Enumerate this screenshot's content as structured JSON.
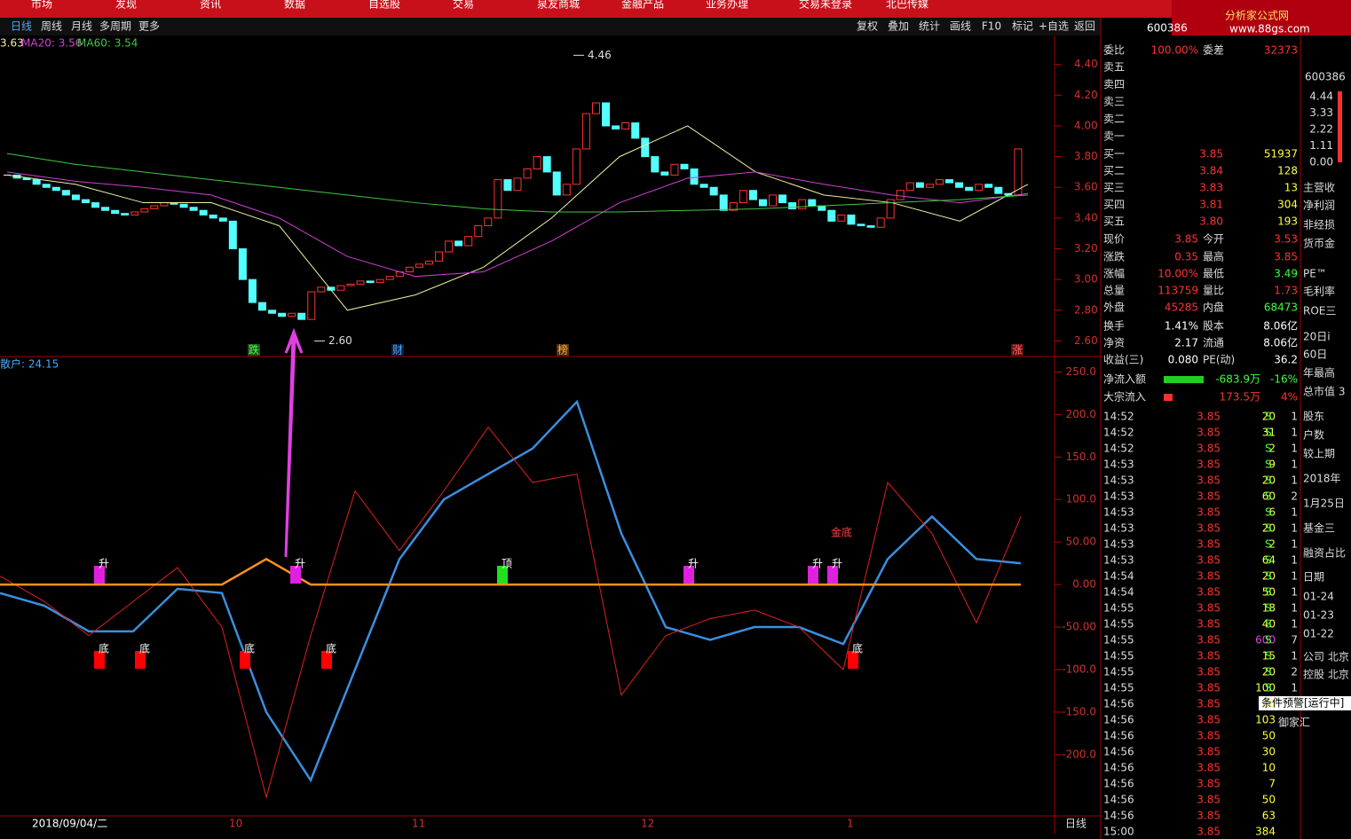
{
  "menu": [
    "市场",
    "发现",
    "资讯",
    "数据",
    "自选股",
    "交易",
    "泉友商城",
    "金融产品",
    "业务办理"
  ],
  "status": "交易未登录",
  "stock_name": "北巴传媒",
  "stock_code": "600386",
  "periods": [
    "日线",
    "周线",
    "月线",
    "多周期",
    "更多"
  ],
  "tools": [
    "复权",
    "叠加",
    "统计",
    "画线",
    "F10",
    "标记",
    "+自选",
    "返回"
  ],
  "ma_legend": [
    "3.63",
    "MA20: 3.56",
    "MA60: 3.54"
  ],
  "logo": {
    "title": "分析家公式网",
    "url": "www.88gs.com"
  },
  "chart_data": [
    {
      "type": "candlestick",
      "ylim": [
        2.51,
        4.56
      ],
      "yticks": [
        {
          "value": 2.6,
          "label": "2.60"
        },
        {
          "value": 2.8,
          "label": "2.80"
        },
        {
          "value": 3,
          "label": "3.00"
        },
        {
          "value": 3.2,
          "label": "3.20"
        },
        {
          "value": 3.4,
          "label": "3.40"
        },
        {
          "value": 3.6,
          "label": "3.60"
        },
        {
          "value": 3.8,
          "label": "3.80"
        },
        {
          "value": 4,
          "label": "4.00"
        },
        {
          "value": 4.2,
          "label": "4.20"
        },
        {
          "value": 4.4,
          "label": "4.40"
        }
      ],
      "closes": [
        3.68,
        3.66,
        3.65,
        3.62,
        3.6,
        3.58,
        3.55,
        3.52,
        3.5,
        3.47,
        3.45,
        3.43,
        3.42,
        3.44,
        3.46,
        3.48,
        3.5,
        3.49,
        3.47,
        3.45,
        3.42,
        3.4,
        3.38,
        3.2,
        3.0,
        2.85,
        2.8,
        2.78,
        2.76,
        2.78,
        2.74,
        2.92,
        2.95,
        2.93,
        2.96,
        2.97,
        2.99,
        2.98,
        3.0,
        3.02,
        3.05,
        3.08,
        3.1,
        3.12,
        3.18,
        3.25,
        3.22,
        3.28,
        3.35,
        3.4,
        3.65,
        3.58,
        3.66,
        3.72,
        3.8,
        3.7,
        3.55,
        3.62,
        3.85,
        4.08,
        4.15,
        4.0,
        3.98,
        4.02,
        3.92,
        3.8,
        3.7,
        3.68,
        3.75,
        3.72,
        3.62,
        3.6,
        3.55,
        3.45,
        3.5,
        3.58,
        3.52,
        3.48,
        3.55,
        3.5,
        3.46,
        3.52,
        3.48,
        3.45,
        3.38,
        3.42,
        3.36,
        3.35,
        3.34,
        3.4,
        3.52,
        3.58,
        3.63,
        3.6,
        3.62,
        3.65,
        3.63,
        3.6,
        3.58,
        3.62,
        3.6,
        3.56,
        3.55,
        3.85
      ],
      "series": [
        {
          "name": "MA5",
          "color": "#f0f0a0",
          "values": [
            3.68,
            3.62,
            3.5,
            3.5,
            3.35,
            2.8,
            2.9,
            3.08,
            3.4,
            3.8,
            4.0,
            3.7,
            3.55,
            3.5,
            3.38,
            3.62
          ]
        },
        {
          "name": "MA20",
          "color": "#d040d0",
          "values": [
            3.7,
            3.64,
            3.6,
            3.55,
            3.4,
            3.15,
            3.02,
            3.05,
            3.25,
            3.5,
            3.66,
            3.7,
            3.62,
            3.55,
            3.5,
            3.56
          ]
        },
        {
          "name": "MA60",
          "color": "#40c840",
          "values": [
            3.82,
            3.75,
            3.7,
            3.65,
            3.6,
            3.55,
            3.5,
            3.46,
            3.44,
            3.44,
            3.45,
            3.46,
            3.48,
            3.5,
            3.52,
            3.55
          ]
        }
      ],
      "annotations": [
        {
          "value": 4.46,
          "label": "4.46"
        },
        {
          "value": 2.6,
          "label": "2.60"
        }
      ],
      "events": [
        "跌",
        "财",
        "榜",
        "涨"
      ]
    },
    {
      "type": "line",
      "title": "散户: 24.15",
      "ylim": [
        -270,
        265
      ],
      "yticks": [
        {
          "value": -200,
          "label": "-200.0"
        },
        {
          "value": -150,
          "label": "-150.0"
        },
        {
          "value": -100,
          "label": "-100.0"
        },
        {
          "value": -50,
          "label": "-50.00"
        },
        {
          "value": 0,
          "label": "0.00"
        },
        {
          "value": 50,
          "label": "50.00"
        },
        {
          "value": 100,
          "label": "100.0"
        },
        {
          "value": 150,
          "label": "150.0"
        },
        {
          "value": 200,
          "label": "200.0"
        },
        {
          "value": 250,
          "label": "250.0"
        }
      ],
      "series": [
        {
          "color": "#3a8fe0",
          "values": [
            -10,
            -25,
            -55,
            -55,
            -5,
            -10,
            -150,
            -230,
            -100,
            30,
            100,
            130,
            160,
            215,
            60,
            -50,
            -65,
            -50,
            -50,
            -70,
            30,
            80,
            30,
            25
          ]
        },
        {
          "color": "#e02020",
          "values": [
            10,
            -20,
            -60,
            -20,
            20,
            -50,
            -250,
            -60,
            110,
            40,
            110,
            185,
            120,
            130,
            -130,
            -60,
            -40,
            -30,
            -50,
            -100,
            120,
            60,
            -45,
            80
          ]
        },
        {
          "color": "#ff9020",
          "values": [
            0,
            0,
            0,
            0,
            0,
            0,
            30,
            0,
            0,
            0,
            0,
            0,
            0,
            0,
            0,
            0,
            0,
            0,
            0,
            0,
            0,
            0,
            0,
            0
          ]
        }
      ],
      "signals": [
        "底",
        "底",
        "底",
        "底",
        "底",
        "升",
        "升",
        "顶",
        "升",
        "升",
        "升",
        "金底"
      ]
    }
  ],
  "dates": [
    "2018/09/04/二",
    "10",
    "11",
    "12",
    "1"
  ],
  "period_label": "日线",
  "order_book": {
    "ratio": [
      "委比",
      "100.00%",
      "委差",
      "32373"
    ],
    "sells": [
      "卖五",
      "卖四",
      "卖三",
      "卖二",
      "卖一"
    ],
    "buys": [
      [
        "买一",
        "3.85",
        "51937"
      ],
      [
        "买二",
        "3.84",
        "128"
      ],
      [
        "买三",
        "3.83",
        "13"
      ],
      [
        "买四",
        "3.81",
        "304"
      ],
      [
        "买五",
        "3.80",
        "193"
      ]
    ],
    "stats": [
      [
        "现价",
        "3.85",
        "今开",
        "3.53"
      ],
      [
        "涨跌",
        "0.35",
        "最高",
        "3.85"
      ],
      [
        "涨幅",
        "10.00%",
        "最低",
        "3.49"
      ],
      [
        "总量",
        "113759",
        "量比",
        "1.73"
      ],
      [
        "外盘",
        "45285",
        "内盘",
        "68473"
      ],
      [
        "换手",
        "1.41%",
        "股本",
        "8.06亿"
      ],
      [
        "净资",
        "2.17",
        "流通",
        "8.06亿"
      ],
      [
        "收益(三)",
        "0.080",
        "PE(动)",
        "36.2"
      ]
    ],
    "flows": [
      [
        "净流入额",
        "-683.9万",
        "-16%"
      ],
      [
        "大宗流入",
        "173.5万",
        "4%"
      ]
    ]
  },
  "trades": [
    [
      "14:52",
      "3.85",
      "20",
      "S",
      "1"
    ],
    [
      "14:52",
      "3.85",
      "31",
      "S",
      "1"
    ],
    [
      "14:52",
      "3.85",
      "2",
      "S",
      "1"
    ],
    [
      "14:53",
      "3.85",
      "9",
      "S",
      "1"
    ],
    [
      "14:53",
      "3.85",
      "20",
      "S",
      "1"
    ],
    [
      "14:53",
      "3.85",
      "60",
      "S",
      "2"
    ],
    [
      "14:53",
      "3.85",
      "6",
      "S",
      "1"
    ],
    [
      "14:53",
      "3.85",
      "20",
      "S",
      "1"
    ],
    [
      "14:53",
      "3.85",
      "2",
      "S",
      "1"
    ],
    [
      "14:53",
      "3.85",
      "64",
      "S",
      "1"
    ],
    [
      "14:54",
      "3.85",
      "20",
      "S",
      "1"
    ],
    [
      "14:54",
      "3.85",
      "50",
      "S",
      "1"
    ],
    [
      "14:55",
      "3.85",
      "18",
      "S",
      "1"
    ],
    [
      "14:55",
      "3.85",
      "40",
      "S",
      "1"
    ],
    [
      "14:55",
      "3.85",
      "600",
      "S",
      "7"
    ],
    [
      "14:55",
      "3.85",
      "15",
      "S",
      "1"
    ],
    [
      "14:55",
      "3.85",
      "20",
      "S",
      "2"
    ],
    [
      "14:55",
      "3.85",
      "100",
      "S",
      "1"
    ],
    [
      "14:56",
      "3.85",
      "10"
    ],
    [
      "14:56",
      "3.85",
      "103"
    ],
    [
      "14:56",
      "3.85",
      "50"
    ],
    [
      "14:56",
      "3.85",
      "30"
    ],
    [
      "14:56",
      "3.85",
      "10"
    ],
    [
      "14:56",
      "3.85",
      "7"
    ],
    [
      "14:56",
      "3.85",
      "50"
    ],
    [
      "14:56",
      "3.85",
      "63"
    ],
    [
      "15:00",
      "3.85",
      "384"
    ]
  ],
  "side": {
    "mini_axis": [
      "4.44",
      "3.33",
      "2.22",
      "1.11",
      "0.00"
    ],
    "items": [
      "主营收",
      "净利润",
      "非经损",
      "货币金",
      "PE™",
      "毛利率",
      "ROE三",
      "20日i",
      "60日",
      "年最高",
      "总市值 3",
      "股东",
      "户数",
      "较上期",
      "2018年",
      "1月25日",
      "基金三",
      "融资占比",
      "日期",
      "01-24",
      "01-23",
      "01-22",
      "公司 北京",
      "控股 北京"
    ],
    "alert": "条件预警[运行中]",
    "alert_item": "御家汇"
  }
}
